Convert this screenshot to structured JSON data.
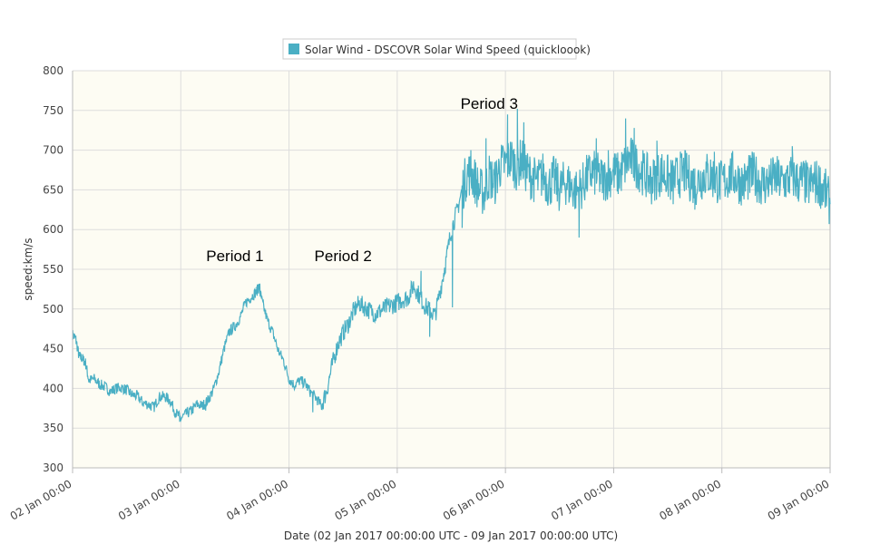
{
  "chart_data": {
    "type": "line",
    "xlabel": "Date (02 Jan 2017 00:00:00 UTC - 09 Jan 2017 00:00:00 UTC)",
    "ylabel": "speed:km/s",
    "xlim": [
      "2017-01-02T00:00",
      "2017-01-09T00:00"
    ],
    "ylim": [
      300,
      800
    ],
    "y_ticks": [
      300,
      350,
      400,
      450,
      500,
      550,
      600,
      650,
      700,
      750,
      800
    ],
    "x_ticks": [
      "02 Jan 00:00",
      "03 Jan 00:00",
      "04 Jan 00:00",
      "05 Jan 00:00",
      "06 Jan 00:00",
      "07 Jan 00:00",
      "08 Jan 00:00",
      "09 Jan 00:00"
    ],
    "grid": true,
    "legend_position": "top-center",
    "colors": {
      "series": "#4aafc4",
      "plot_background": "#fdfcf3",
      "grid": "#dddddd"
    },
    "series": [
      {
        "name": "Solar Wind - DSCOVR Solar Wind Speed (quickloook)",
        "x_unit": "days since 02 Jan 2017 00:00 UTC",
        "points": [
          [
            0.0,
            468
          ],
          [
            0.03,
            462
          ],
          [
            0.06,
            440
          ],
          [
            0.09,
            438
          ],
          [
            0.12,
            432
          ],
          [
            0.15,
            410
          ],
          [
            0.2,
            412
          ],
          [
            0.25,
            405
          ],
          [
            0.3,
            402
          ],
          [
            0.35,
            396
          ],
          [
            0.4,
            400
          ],
          [
            0.45,
            401
          ],
          [
            0.5,
            398
          ],
          [
            0.55,
            392
          ],
          [
            0.6,
            390
          ],
          [
            0.65,
            382
          ],
          [
            0.7,
            380
          ],
          [
            0.75,
            376
          ],
          [
            0.8,
            389
          ],
          [
            0.85,
            390
          ],
          [
            0.9,
            385
          ],
          [
            0.95,
            370
          ],
          [
            1.0,
            362
          ],
          [
            1.05,
            368
          ],
          [
            1.1,
            372
          ],
          [
            1.15,
            380
          ],
          [
            1.2,
            378
          ],
          [
            1.25,
            385
          ],
          [
            1.3,
            398
          ],
          [
            1.35,
            420
          ],
          [
            1.4,
            450
          ],
          [
            1.45,
            472
          ],
          [
            1.5,
            478
          ],
          [
            1.55,
            490
          ],
          [
            1.6,
            508
          ],
          [
            1.65,
            515
          ],
          [
            1.7,
            522
          ],
          [
            1.72,
            528
          ],
          [
            1.75,
            510
          ],
          [
            1.8,
            486
          ],
          [
            1.85,
            470
          ],
          [
            1.9,
            448
          ],
          [
            1.95,
            435
          ],
          [
            2.0,
            412
          ],
          [
            2.05,
            404
          ],
          [
            2.1,
            410
          ],
          [
            2.15,
            406
          ],
          [
            2.2,
            395
          ],
          [
            2.25,
            388
          ],
          [
            2.3,
            378
          ],
          [
            2.35,
            398
          ],
          [
            2.4,
            430
          ],
          [
            2.45,
            455
          ],
          [
            2.5,
            470
          ],
          [
            2.55,
            482
          ],
          [
            2.6,
            498
          ],
          [
            2.65,
            507
          ],
          [
            2.7,
            502
          ],
          [
            2.75,
            498
          ],
          [
            2.8,
            494
          ],
          [
            2.85,
            498
          ],
          [
            2.9,
            502
          ],
          [
            2.95,
            505
          ],
          [
            3.0,
            508
          ],
          [
            3.05,
            512
          ],
          [
            3.1,
            514
          ],
          [
            3.15,
            530
          ],
          [
            3.2,
            518
          ],
          [
            3.25,
            505
          ],
          [
            3.3,
            498
          ],
          [
            3.35,
            492
          ],
          [
            3.4,
            525
          ],
          [
            3.45,
            560
          ],
          [
            3.5,
            600
          ],
          [
            3.55,
            622
          ],
          [
            3.6,
            650
          ],
          [
            3.65,
            672
          ],
          [
            3.7,
            668
          ],
          [
            3.75,
            652
          ],
          [
            3.8,
            645
          ],
          [
            3.85,
            668
          ],
          [
            3.9,
            658
          ],
          [
            3.95,
            680
          ],
          [
            4.0,
            682
          ],
          [
            4.05,
            690
          ],
          [
            4.1,
            678
          ],
          [
            4.15,
            688
          ],
          [
            4.2,
            672
          ],
          [
            4.25,
            665
          ],
          [
            4.3,
            660
          ],
          [
            4.35,
            670
          ],
          [
            4.4,
            655
          ],
          [
            4.45,
            665
          ],
          [
            4.5,
            650
          ],
          [
            4.55,
            660
          ],
          [
            4.6,
            655
          ],
          [
            4.65,
            648
          ],
          [
            4.7,
            652
          ],
          [
            4.75,
            665
          ],
          [
            4.8,
            672
          ],
          [
            4.85,
            668
          ],
          [
            4.9,
            662
          ],
          [
            4.95,
            668
          ],
          [
            5.0,
            672
          ],
          [
            5.05,
            668
          ],
          [
            5.1,
            680
          ],
          [
            5.15,
            690
          ],
          [
            5.2,
            682
          ],
          [
            5.25,
            675
          ],
          [
            5.3,
            668
          ],
          [
            5.35,
            660
          ],
          [
            5.4,
            668
          ],
          [
            5.45,
            672
          ],
          [
            5.5,
            665
          ],
          [
            5.55,
            660
          ],
          [
            5.6,
            668
          ],
          [
            5.65,
            672
          ],
          [
            5.7,
            665
          ],
          [
            5.75,
            658
          ],
          [
            5.8,
            664
          ],
          [
            5.85,
            670
          ],
          [
            5.9,
            668
          ],
          [
            5.95,
            662
          ],
          [
            6.0,
            658
          ],
          [
            6.05,
            665
          ],
          [
            6.1,
            670
          ],
          [
            6.15,
            662
          ],
          [
            6.2,
            658
          ],
          [
            6.25,
            665
          ],
          [
            6.3,
            668
          ],
          [
            6.35,
            660
          ],
          [
            6.4,
            658
          ],
          [
            6.45,
            662
          ],
          [
            6.5,
            665
          ],
          [
            6.55,
            660
          ],
          [
            6.6,
            662
          ],
          [
            6.65,
            668
          ],
          [
            6.7,
            660
          ],
          [
            6.75,
            662
          ],
          [
            6.8,
            655
          ],
          [
            6.85,
            660
          ],
          [
            6.9,
            658
          ],
          [
            6.95,
            650
          ],
          [
            7.0,
            632
          ]
        ],
        "extremes": [
          [
            0.99,
            358
          ],
          [
            1.23,
            372
          ],
          [
            1.73,
            532
          ],
          [
            2.22,
            370
          ],
          [
            3.22,
            548
          ],
          [
            3.3,
            465
          ],
          [
            3.51,
            502
          ],
          [
            3.6,
            602
          ],
          [
            3.68,
            700
          ],
          [
            3.82,
            715
          ],
          [
            4.02,
            745
          ],
          [
            4.11,
            752
          ],
          [
            4.17,
            735
          ],
          [
            4.68,
            590
          ],
          [
            4.84,
            715
          ],
          [
            4.95,
            700
          ],
          [
            5.11,
            740
          ],
          [
            5.19,
            728
          ],
          [
            5.4,
            712
          ],
          [
            5.55,
            632
          ],
          [
            5.75,
            625
          ],
          [
            5.93,
            698
          ],
          [
            6.28,
            698
          ],
          [
            6.65,
            705
          ]
        ]
      }
    ],
    "annotations": [
      {
        "text": "Period 1",
        "x": 1.5,
        "y": 560
      },
      {
        "text": "Period 2",
        "x": 2.5,
        "y": 560
      },
      {
        "text": "Period 3",
        "x": 3.85,
        "y": 752
      }
    ]
  }
}
